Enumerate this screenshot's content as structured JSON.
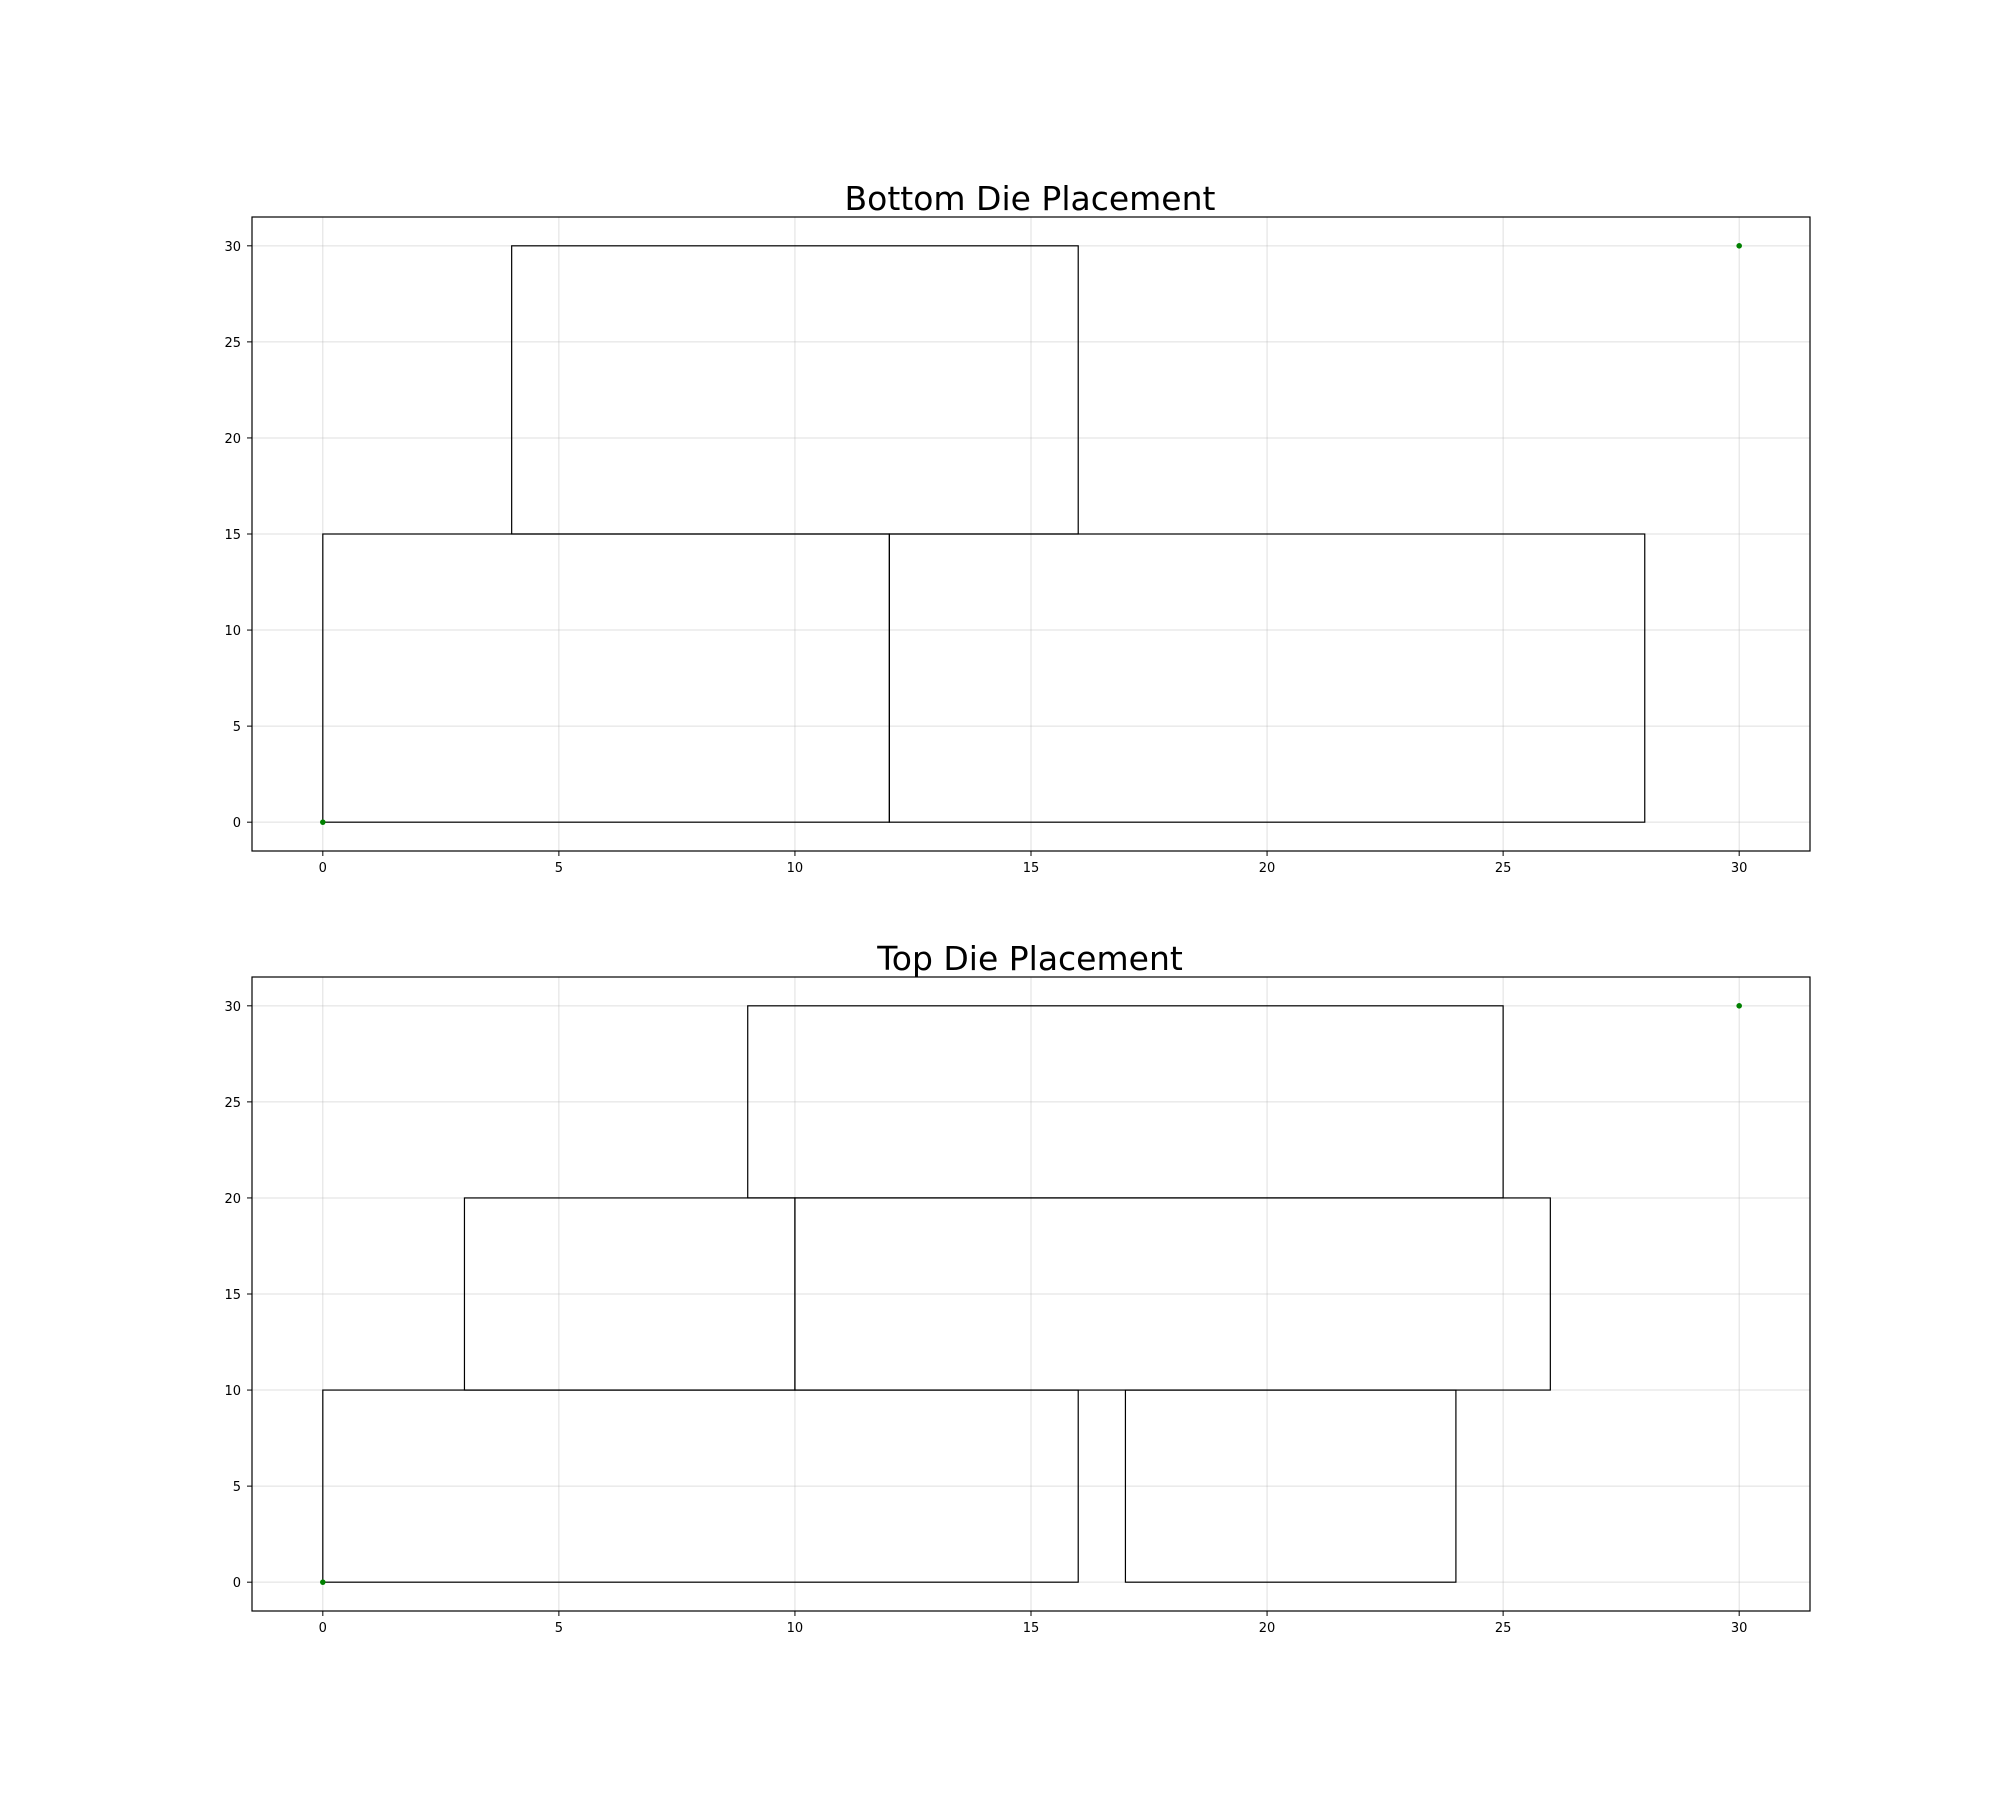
{
  "chart_data": [
    {
      "type": "rectangles",
      "title": "Bottom Die Placement",
      "xlabel": "",
      "ylabel": "",
      "xlim": [
        -1.5,
        31.5
      ],
      "ylim": [
        -1.5,
        31.5
      ],
      "xticks": [
        0,
        5,
        10,
        15,
        20,
        25,
        30
      ],
      "yticks": [
        0,
        5,
        10,
        15,
        20,
        25,
        30
      ],
      "xtick_labels": [
        "0",
        "5",
        "10",
        "15",
        "20",
        "25",
        "30"
      ],
      "ytick_labels": [
        "0",
        "5",
        "10",
        "15",
        "20",
        "25",
        "30"
      ],
      "grid": true,
      "rectangles": [
        {
          "x": 0,
          "y": 0,
          "width": 12,
          "height": 15
        },
        {
          "x": 12,
          "y": 0,
          "width": 16,
          "height": 15
        },
        {
          "x": 4,
          "y": 15,
          "width": 12,
          "height": 15
        }
      ],
      "points": [
        {
          "x": 0,
          "y": 0
        },
        {
          "x": 30,
          "y": 30
        }
      ]
    },
    {
      "type": "rectangles",
      "title": "Top Die Placement",
      "xlabel": "",
      "ylabel": "",
      "xlim": [
        -1.5,
        31.5
      ],
      "ylim": [
        -1.5,
        31.5
      ],
      "xticks": [
        0,
        5,
        10,
        15,
        20,
        25,
        30
      ],
      "yticks": [
        0,
        5,
        10,
        15,
        20,
        25,
        30
      ],
      "xtick_labels": [
        "0",
        "5",
        "10",
        "15",
        "20",
        "25",
        "30"
      ],
      "ytick_labels": [
        "0",
        "5",
        "10",
        "15",
        "20",
        "25",
        "30"
      ],
      "grid": true,
      "rectangles": [
        {
          "x": 0,
          "y": 0,
          "width": 16,
          "height": 10
        },
        {
          "x": 17,
          "y": 0,
          "width": 7,
          "height": 10
        },
        {
          "x": 3,
          "y": 10,
          "width": 7,
          "height": 10
        },
        {
          "x": 10,
          "y": 10,
          "width": 16,
          "height": 10
        },
        {
          "x": 9,
          "y": 20,
          "width": 16,
          "height": 10
        }
      ],
      "points": [
        {
          "x": 0,
          "y": 0
        },
        {
          "x": 30,
          "y": 30
        }
      ]
    }
  ],
  "colors": {
    "rect_edge": "#000000",
    "point": "#008000",
    "grid": "#b0b0b0",
    "frame": "#000000"
  }
}
